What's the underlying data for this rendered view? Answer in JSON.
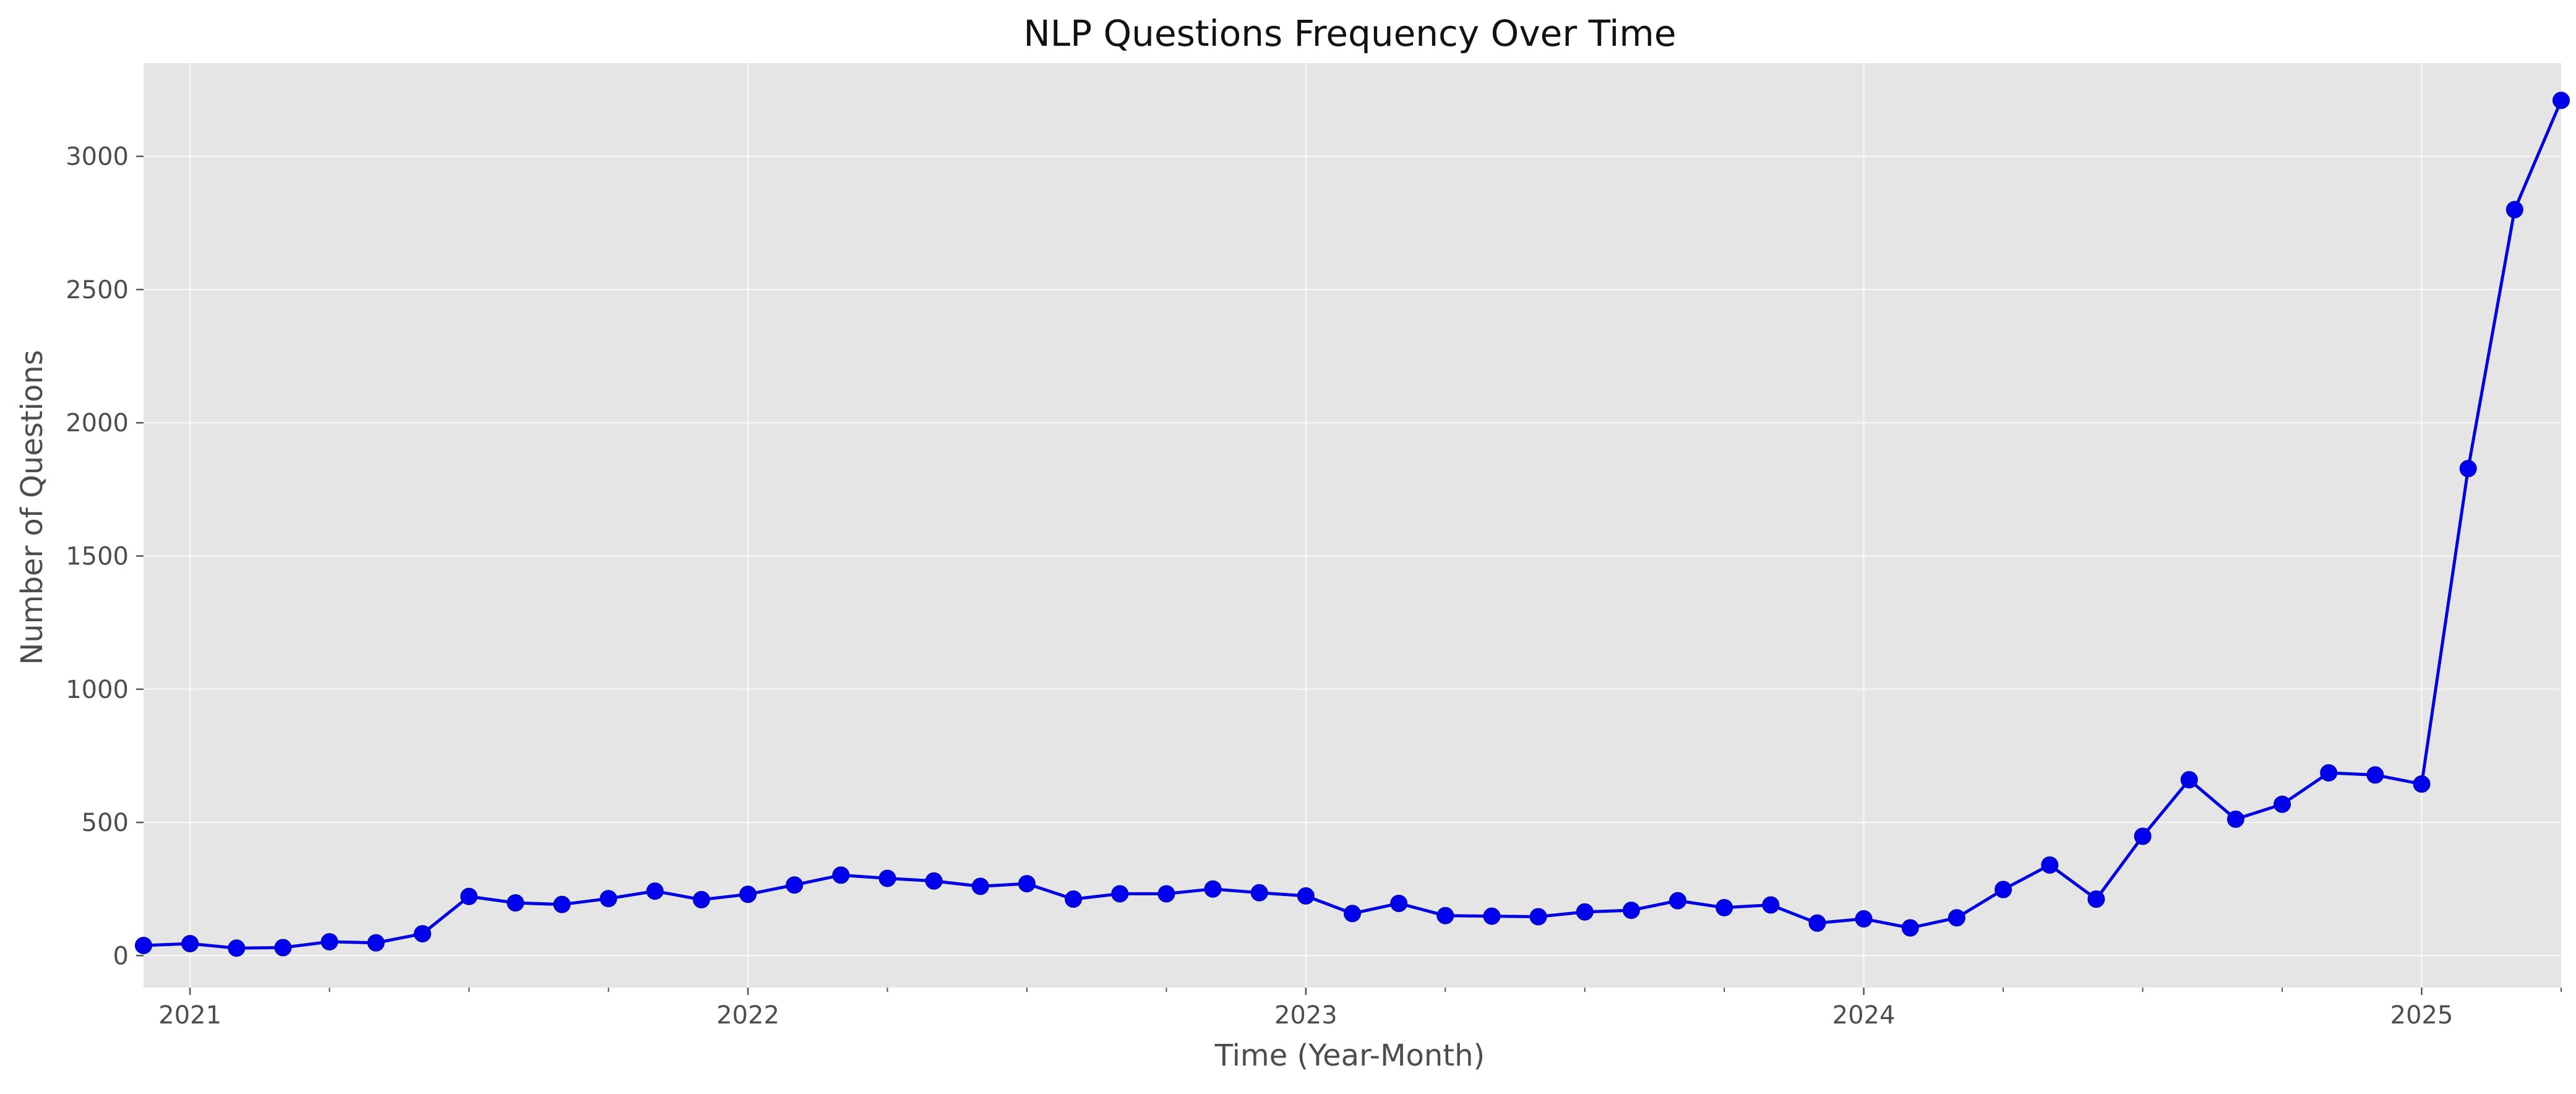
{
  "chart_data": {
    "type": "line",
    "title": "NLP Questions Frequency Over Time",
    "xlabel": "Time (Year-Month)",
    "ylabel": "Number of Questions",
    "x_axis_type": "date",
    "x_range": [
      "2020-12",
      "2025-04"
    ],
    "ylim": [
      -120,
      3350
    ],
    "grid": true,
    "legend": "none",
    "style": {
      "background": "#e5e5e5",
      "grid_color": "#ffffff",
      "line_color": "#0000e0",
      "marker_color": "#0000ee"
    },
    "x_ticks": [
      {
        "date": "2021-01",
        "label": "2021"
      },
      {
        "date": "2022-01",
        "label": "2022"
      },
      {
        "date": "2023-01",
        "label": "2023"
      },
      {
        "date": "2024-01",
        "label": "2024"
      },
      {
        "date": "2025-01",
        "label": "2025"
      }
    ],
    "x_minor_ticks": [
      "2021-04",
      "2021-07",
      "2021-10",
      "2022-04",
      "2022-07",
      "2022-10",
      "2023-04",
      "2023-07",
      "2023-10",
      "2024-04",
      "2024-07",
      "2024-10",
      "2025-04"
    ],
    "y_ticks": [
      0,
      500,
      1000,
      1500,
      2000,
      2500,
      3000
    ],
    "series": [
      {
        "x": [
          "2020-12",
          "2021-01",
          "2021-02",
          "2021-03",
          "2021-04",
          "2021-05",
          "2021-06",
          "2021-07",
          "2021-08",
          "2021-09",
          "2021-10",
          "2021-11",
          "2021-12",
          "2022-01",
          "2022-02",
          "2022-03",
          "2022-04",
          "2022-05",
          "2022-06",
          "2022-07",
          "2022-08",
          "2022-09",
          "2022-10",
          "2022-11",
          "2022-12",
          "2023-01",
          "2023-02",
          "2023-03",
          "2023-04",
          "2023-05",
          "2023-06",
          "2023-07",
          "2023-08",
          "2023-09",
          "2023-10",
          "2023-11",
          "2023-12",
          "2024-01",
          "2024-02",
          "2024-03",
          "2024-04",
          "2024-05",
          "2024-06",
          "2024-07",
          "2024-08",
          "2024-09",
          "2024-10",
          "2024-11",
          "2024-12",
          "2025-01",
          "2025-02",
          "2025-03",
          "2025-04"
        ],
        "values": [
          38,
          45,
          28,
          30,
          52,
          48,
          82,
          222,
          198,
          192,
          214,
          242,
          210,
          230,
          265,
          302,
          290,
          280,
          260,
          270,
          212,
          232,
          232,
          250,
          236,
          224,
          158,
          196,
          150,
          148,
          146,
          164,
          170,
          206,
          180,
          190,
          122,
          138,
          104,
          142,
          248,
          340,
          212,
          448,
          660,
          512,
          568,
          686,
          678,
          644,
          1828,
          2800,
          3210
        ]
      }
    ]
  }
}
